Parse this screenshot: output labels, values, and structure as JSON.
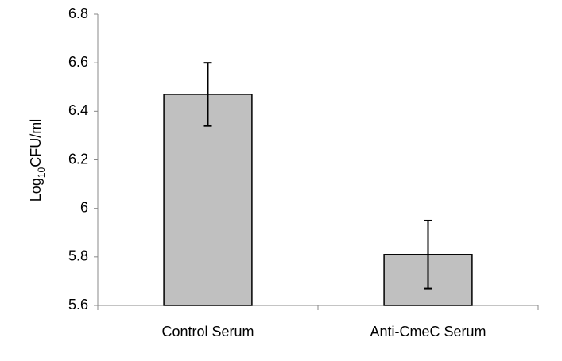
{
  "chart_data": {
    "type": "bar",
    "y_label": "Log10CFU/ml",
    "categories": [
      "Control Serum",
      "Anti-CmeC Serum"
    ],
    "values": [
      6.47,
      5.81
    ],
    "errors": [
      0.13,
      0.14
    ],
    "color": "#c0c0c0",
    "ylim": [
      5.6,
      6.8
    ],
    "yticks": [
      5.6,
      5.8,
      6,
      6.2,
      6.4,
      6.6,
      6.8
    ],
    "grid": false
  }
}
